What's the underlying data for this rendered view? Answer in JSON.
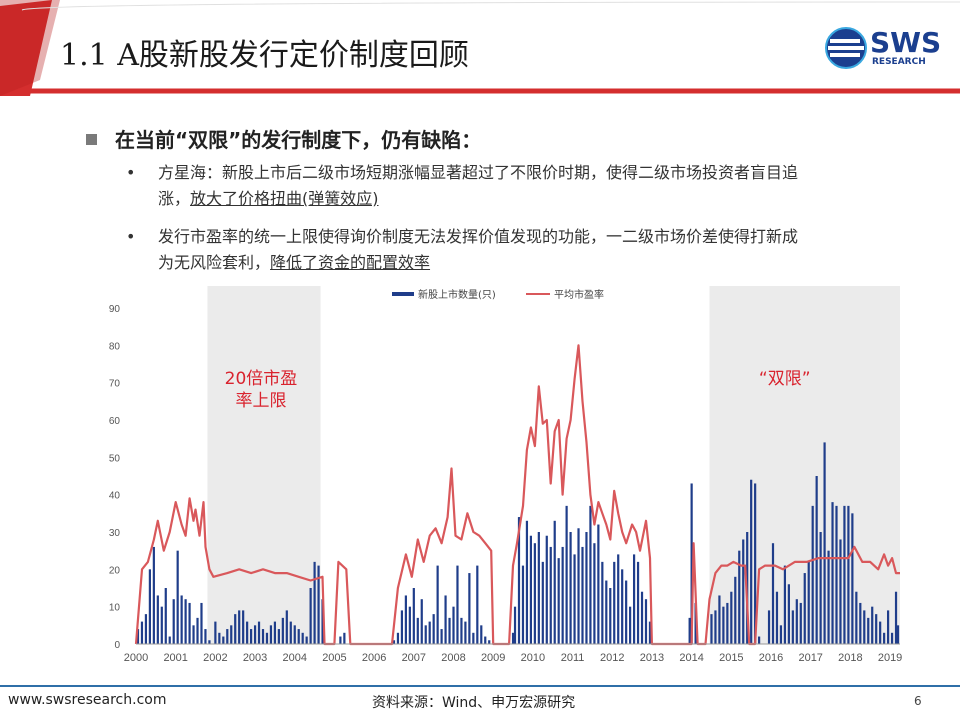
{
  "slide": {
    "title": "1.1 A股新股发行定价制度回顾",
    "logo_text": "SWS",
    "logo_sub": "RESEARCH",
    "heading": "在当前“双限”的发行制度下，仍有缺陷：",
    "bullets": [
      {
        "line1": "方星海：新股上市后二级市场短期涨幅显著超过了不限价时期，使得二级市场投资者盲目追",
        "line2_plain": "涨，",
        "line2_underlined": "放大了价格扭曲(弹簧效应)"
      },
      {
        "line1": "发行市盈率的统一上限使得询价制度无法发挥价值发现的功能，一二级市场价差使得打新成",
        "line2_plain": "为无风险套利，",
        "line2_underlined": "降低了资金的配置效率"
      }
    ],
    "footer_url": "www.swsresearch.com",
    "footer_source": "资料来源：Wind、申万宏源研究",
    "page_number": "6"
  },
  "chart_data": {
    "type": "bar+line",
    "ylim": [
      0,
      90
    ],
    "yticks": [
      0,
      10,
      20,
      30,
      40,
      50,
      60,
      70,
      80,
      90
    ],
    "xlim": [
      2000,
      2019.25
    ],
    "xticks": [
      "2000",
      "2001",
      "2002",
      "2003",
      "2004",
      "2005",
      "2006",
      "2007",
      "2008",
      "2009",
      "2010",
      "2011",
      "2012",
      "2013",
      "2014",
      "2015",
      "2016",
      "2017",
      "2018",
      "2019"
    ],
    "legend": {
      "position": "top-center",
      "items": [
        "新股上市数量(只)",
        "平均市盈率"
      ]
    },
    "shaded_periods": [
      {
        "from": 2001.8,
        "to": 2004.65,
        "label_line1": "20倍市盈",
        "label_line2": "率上限"
      },
      {
        "from": 2014.45,
        "to": 2019.25,
        "label_line1": "“双限”",
        "label_line2": ""
      }
    ],
    "colors": {
      "bars": "#1f3d8a",
      "line": "#d9585b",
      "shade": "#ebebeb",
      "label": "#d9232e",
      "axis_text": "#555555"
    },
    "series_pe": [
      [
        2000.0,
        0
      ],
      [
        2000.15,
        20
      ],
      [
        2000.3,
        22
      ],
      [
        2000.45,
        28
      ],
      [
        2000.55,
        33
      ],
      [
        2000.7,
        25
      ],
      [
        2000.85,
        30
      ],
      [
        2001.0,
        38
      ],
      [
        2001.15,
        32
      ],
      [
        2001.25,
        29
      ],
      [
        2001.35,
        39
      ],
      [
        2001.45,
        33
      ],
      [
        2001.5,
        36
      ],
      [
        2001.6,
        29
      ],
      [
        2001.7,
        38
      ],
      [
        2001.75,
        26
      ],
      [
        2001.85,
        20
      ],
      [
        2001.95,
        18
      ],
      [
        2002.3,
        19
      ],
      [
        2002.6,
        20
      ],
      [
        2002.9,
        19
      ],
      [
        2003.2,
        20
      ],
      [
        2003.5,
        19
      ],
      [
        2003.8,
        19
      ],
      [
        2004.1,
        18
      ],
      [
        2004.4,
        17
      ],
      [
        2004.7,
        18
      ],
      [
        2004.75,
        0
      ],
      [
        2005.0,
        0
      ],
      [
        2005.1,
        22
      ],
      [
        2005.3,
        20
      ],
      [
        2005.4,
        0
      ],
      [
        2006.45,
        0
      ],
      [
        2006.6,
        15
      ],
      [
        2006.8,
        24
      ],
      [
        2006.95,
        18
      ],
      [
        2007.1,
        28
      ],
      [
        2007.25,
        22
      ],
      [
        2007.4,
        29
      ],
      [
        2007.55,
        31
      ],
      [
        2007.7,
        27
      ],
      [
        2007.85,
        34
      ],
      [
        2007.95,
        47
      ],
      [
        2008.05,
        29
      ],
      [
        2008.2,
        28
      ],
      [
        2008.35,
        35
      ],
      [
        2008.5,
        30
      ],
      [
        2008.65,
        29
      ],
      [
        2008.8,
        27
      ],
      [
        2008.95,
        25
      ],
      [
        2009.0,
        0
      ],
      [
        2009.4,
        0
      ],
      [
        2009.5,
        21
      ],
      [
        2009.6,
        27
      ],
      [
        2009.75,
        37
      ],
      [
        2009.85,
        52
      ],
      [
        2009.95,
        58
      ],
      [
        2010.05,
        53
      ],
      [
        2010.15,
        69
      ],
      [
        2010.25,
        59
      ],
      [
        2010.35,
        60
      ],
      [
        2010.45,
        43
      ],
      [
        2010.55,
        57
      ],
      [
        2010.65,
        60
      ],
      [
        2010.75,
        40
      ],
      [
        2010.85,
        55
      ],
      [
        2010.95,
        60
      ],
      [
        2011.05,
        71
      ],
      [
        2011.15,
        80
      ],
      [
        2011.25,
        65
      ],
      [
        2011.35,
        54
      ],
      [
        2011.45,
        40
      ],
      [
        2011.55,
        32
      ],
      [
        2011.65,
        38
      ],
      [
        2011.75,
        35
      ],
      [
        2011.85,
        32
      ],
      [
        2011.95,
        28
      ],
      [
        2012.05,
        41
      ],
      [
        2012.15,
        35
      ],
      [
        2012.25,
        30
      ],
      [
        2012.35,
        27
      ],
      [
        2012.5,
        32
      ],
      [
        2012.6,
        30
      ],
      [
        2012.7,
        25
      ],
      [
        2012.85,
        33
      ],
      [
        2012.95,
        23
      ],
      [
        2013.0,
        0
      ],
      [
        2014.0,
        0
      ],
      [
        2014.05,
        27
      ],
      [
        2014.15,
        0
      ],
      [
        2014.35,
        0
      ],
      [
        2014.45,
        12
      ],
      [
        2014.6,
        19
      ],
      [
        2014.75,
        21
      ],
      [
        2014.9,
        21
      ],
      [
        2015.05,
        22
      ],
      [
        2015.25,
        21
      ],
      [
        2015.35,
        21
      ],
      [
        2015.45,
        0
      ],
      [
        2015.6,
        0
      ],
      [
        2015.7,
        20
      ],
      [
        2015.85,
        21
      ],
      [
        2016.1,
        21
      ],
      [
        2016.3,
        20
      ],
      [
        2016.6,
        22
      ],
      [
        2016.9,
        22
      ],
      [
        2017.2,
        23
      ],
      [
        2017.5,
        23
      ],
      [
        2017.7,
        23
      ],
      [
        2017.95,
        23
      ],
      [
        2018.1,
        26
      ],
      [
        2018.3,
        22
      ],
      [
        2018.5,
        22
      ],
      [
        2018.7,
        20
      ],
      [
        2018.85,
        24
      ],
      [
        2018.95,
        21
      ],
      [
        2019.05,
        23
      ],
      [
        2019.15,
        19
      ],
      [
        2019.25,
        19
      ]
    ],
    "series_ipo": [
      [
        2000.05,
        4
      ],
      [
        2000.15,
        6
      ],
      [
        2000.25,
        8
      ],
      [
        2000.35,
        20
      ],
      [
        2000.45,
        26
      ],
      [
        2000.55,
        13
      ],
      [
        2000.65,
        10
      ],
      [
        2000.75,
        15
      ],
      [
        2000.85,
        2
      ],
      [
        2000.95,
        12
      ],
      [
        2001.05,
        25
      ],
      [
        2001.15,
        13
      ],
      [
        2001.25,
        12
      ],
      [
        2001.35,
        11
      ],
      [
        2001.45,
        5
      ],
      [
        2001.55,
        7
      ],
      [
        2001.65,
        11
      ],
      [
        2001.75,
        4
      ],
      [
        2001.85,
        1
      ],
      [
        2002.0,
        6
      ],
      [
        2002.1,
        3
      ],
      [
        2002.2,
        2
      ],
      [
        2002.3,
        4
      ],
      [
        2002.4,
        5
      ],
      [
        2002.5,
        8
      ],
      [
        2002.6,
        9
      ],
      [
        2002.7,
        9
      ],
      [
        2002.8,
        6
      ],
      [
        2002.9,
        4
      ],
      [
        2003.0,
        5
      ],
      [
        2003.1,
        6
      ],
      [
        2003.2,
        4
      ],
      [
        2003.3,
        3
      ],
      [
        2003.4,
        5
      ],
      [
        2003.5,
        6
      ],
      [
        2003.6,
        4
      ],
      [
        2003.7,
        7
      ],
      [
        2003.8,
        9
      ],
      [
        2003.9,
        6
      ],
      [
        2004.0,
        5
      ],
      [
        2004.1,
        4
      ],
      [
        2004.2,
        3
      ],
      [
        2004.3,
        2
      ],
      [
        2004.4,
        15
      ],
      [
        2004.5,
        22
      ],
      [
        2004.6,
        21
      ],
      [
        2004.7,
        12
      ],
      [
        2005.15,
        2
      ],
      [
        2005.25,
        3
      ],
      [
        2006.5,
        1
      ],
      [
        2006.6,
        3
      ],
      [
        2006.7,
        9
      ],
      [
        2006.8,
        13
      ],
      [
        2006.9,
        10
      ],
      [
        2007.0,
        15
      ],
      [
        2007.1,
        7
      ],
      [
        2007.2,
        12
      ],
      [
        2007.3,
        5
      ],
      [
        2007.4,
        6
      ],
      [
        2007.5,
        8
      ],
      [
        2007.6,
        21
      ],
      [
        2007.7,
        4
      ],
      [
        2007.8,
        13
      ],
      [
        2007.9,
        7
      ],
      [
        2008.0,
        10
      ],
      [
        2008.1,
        21
      ],
      [
        2008.2,
        7
      ],
      [
        2008.3,
        6
      ],
      [
        2008.4,
        19
      ],
      [
        2008.5,
        3
      ],
      [
        2008.6,
        21
      ],
      [
        2008.7,
        5
      ],
      [
        2008.8,
        2
      ],
      [
        2008.9,
        1
      ],
      [
        2009.5,
        3
      ],
      [
        2009.55,
        10
      ],
      [
        2009.65,
        34
      ],
      [
        2009.75,
        21
      ],
      [
        2009.85,
        33
      ],
      [
        2009.95,
        29
      ],
      [
        2010.05,
        27
      ],
      [
        2010.15,
        30
      ],
      [
        2010.25,
        22
      ],
      [
        2010.35,
        29
      ],
      [
        2010.45,
        26
      ],
      [
        2010.55,
        33
      ],
      [
        2010.65,
        23
      ],
      [
        2010.75,
        26
      ],
      [
        2010.85,
        37
      ],
      [
        2010.95,
        30
      ],
      [
        2011.05,
        24
      ],
      [
        2011.15,
        31
      ],
      [
        2011.25,
        26
      ],
      [
        2011.35,
        30
      ],
      [
        2011.45,
        37
      ],
      [
        2011.55,
        27
      ],
      [
        2011.65,
        32
      ],
      [
        2011.75,
        22
      ],
      [
        2011.85,
        17
      ],
      [
        2011.95,
        15
      ],
      [
        2012.05,
        22
      ],
      [
        2012.15,
        24
      ],
      [
        2012.25,
        20
      ],
      [
        2012.35,
        17
      ],
      [
        2012.45,
        10
      ],
      [
        2012.55,
        24
      ],
      [
        2012.65,
        22
      ],
      [
        2012.75,
        14
      ],
      [
        2012.85,
        12
      ],
      [
        2012.95,
        6
      ],
      [
        2013.95,
        7
      ],
      [
        2014.0,
        43
      ],
      [
        2014.1,
        11
      ],
      [
        2014.5,
        8
      ],
      [
        2014.6,
        9
      ],
      [
        2014.7,
        13
      ],
      [
        2014.8,
        10
      ],
      [
        2014.9,
        11
      ],
      [
        2015.0,
        14
      ],
      [
        2015.1,
        18
      ],
      [
        2015.2,
        25
      ],
      [
        2015.3,
        28
      ],
      [
        2015.4,
        30
      ],
      [
        2015.5,
        44
      ],
      [
        2015.6,
        43
      ],
      [
        2015.7,
        2
      ],
      [
        2015.95,
        9
      ],
      [
        2016.05,
        27
      ],
      [
        2016.15,
        14
      ],
      [
        2016.25,
        5
      ],
      [
        2016.35,
        21
      ],
      [
        2016.45,
        16
      ],
      [
        2016.55,
        9
      ],
      [
        2016.65,
        12
      ],
      [
        2016.75,
        11
      ],
      [
        2016.85,
        19
      ],
      [
        2016.95,
        22
      ],
      [
        2017.05,
        37
      ],
      [
        2017.15,
        45
      ],
      [
        2017.25,
        30
      ],
      [
        2017.35,
        54
      ],
      [
        2017.45,
        25
      ],
      [
        2017.55,
        38
      ],
      [
        2017.65,
        37
      ],
      [
        2017.75,
        28
      ],
      [
        2017.85,
        37
      ],
      [
        2017.95,
        37
      ],
      [
        2018.05,
        35
      ],
      [
        2018.15,
        14
      ],
      [
        2018.25,
        11
      ],
      [
        2018.35,
        9
      ],
      [
        2018.45,
        7
      ],
      [
        2018.55,
        10
      ],
      [
        2018.65,
        8
      ],
      [
        2018.75,
        6
      ],
      [
        2018.85,
        3
      ],
      [
        2018.95,
        9
      ],
      [
        2019.05,
        3
      ],
      [
        2019.15,
        14
      ],
      [
        2019.2,
        5
      ]
    ]
  }
}
